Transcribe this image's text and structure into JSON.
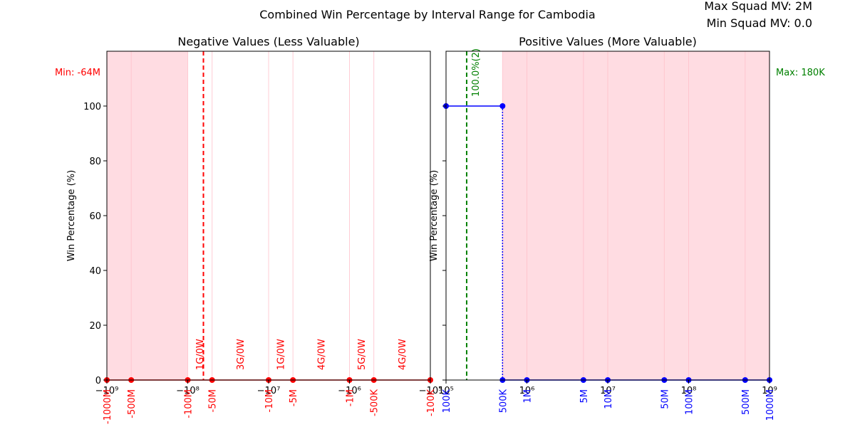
{
  "figure": {
    "title": "Combined Win Percentage by Interval Range for Cambodia",
    "max_squad_mv": "Max Squad MV: 2M",
    "min_squad_mv": "Min Squad MV: 0.0"
  },
  "colors": {
    "negative_series": "#ff0000",
    "positive_series": "#0000ff",
    "shade": "#ffc0cb",
    "max_line": "#008000",
    "min_line": "#ff0000",
    "interval_line": "#ffc0cb"
  },
  "chart_data": [
    {
      "type": "line",
      "title": "Negative Values (Less Valuable)",
      "xlabel": "",
      "ylabel": "Win Percentage (%)",
      "x_scale": "symlog",
      "xlim": [
        -1000000000,
        -100000
      ],
      "ylim": [
        0,
        100
      ],
      "x_major_ticks": [
        {
          "v": -1000000000,
          "label": "−10⁹"
        },
        {
          "v": -100000000,
          "label": "−10⁸"
        },
        {
          "v": -10000000,
          "label": "−10⁷"
        },
        {
          "v": -1000000,
          "label": "−10⁶"
        },
        {
          "v": -100000,
          "label": "−10⁵"
        }
      ],
      "y_ticks": [
        0,
        20,
        40,
        60,
        80,
        100
      ],
      "interval_labels": [
        {
          "v": -1000000000,
          "label": "-1000M"
        },
        {
          "v": -500000000,
          "label": "-500M"
        },
        {
          "v": -100000000,
          "label": "-100M"
        },
        {
          "v": -50000000,
          "label": "-50M"
        },
        {
          "v": -10000000,
          "label": "-10M"
        },
        {
          "v": -5000000,
          "label": "-5M"
        },
        {
          "v": -1000000,
          "label": "-1M"
        },
        {
          "v": -500000,
          "label": "-500K"
        },
        {
          "v": -100000,
          "label": "-100K"
        }
      ],
      "points": [
        {
          "x": -1000000000,
          "y": 0
        },
        {
          "x": -500000000,
          "y": 0
        },
        {
          "x": -100000000,
          "y": 0
        },
        {
          "x": -50000000,
          "y": 0
        },
        {
          "x": -10000000,
          "y": 0
        },
        {
          "x": -5000000,
          "y": 0
        },
        {
          "x": -1000000,
          "y": 0
        },
        {
          "x": -500000,
          "y": 0
        },
        {
          "x": -100000,
          "y": 0
        }
      ],
      "segment_annotations": [
        {
          "x": -70000000,
          "label": "1G/0W"
        },
        {
          "x": -22000000,
          "label": "3G/0W"
        },
        {
          "x": -7000000,
          "label": "1G/0W"
        },
        {
          "x": -2200000,
          "label": "4G/0W"
        },
        {
          "x": -700000,
          "label": "5G/0W"
        },
        {
          "x": -220000,
          "label": "4G/0W"
        }
      ],
      "shaded_ranges": [
        [
          -1000000000,
          -100000000
        ]
      ],
      "reference_line": {
        "x": -64000000,
        "label": "Min: -64M"
      }
    },
    {
      "type": "line",
      "title": "Positive Values (More Valuable)",
      "xlabel": "",
      "ylabel": "Win Percentage (%)",
      "x_scale": "log",
      "xlim": [
        100000,
        1000000000
      ],
      "ylim": [
        0,
        100
      ],
      "x_major_ticks": [
        {
          "v": 100000,
          "label": "10⁵"
        },
        {
          "v": 1000000,
          "label": "10⁶"
        },
        {
          "v": 10000000,
          "label": "10⁷"
        },
        {
          "v": 100000000,
          "label": "10⁸"
        },
        {
          "v": 1000000000,
          "label": "10⁹"
        }
      ],
      "y_ticks": [
        0,
        20,
        40,
        60,
        80,
        100
      ],
      "interval_labels": [
        {
          "v": 100000,
          "label": "100K"
        },
        {
          "v": 500000,
          "label": "500K"
        },
        {
          "v": 1000000,
          "label": "1M"
        },
        {
          "v": 5000000,
          "label": "5M"
        },
        {
          "v": 10000000,
          "label": "10M"
        },
        {
          "v": 50000000,
          "label": "50M"
        },
        {
          "v": 100000000,
          "label": "100M"
        },
        {
          "v": 500000000,
          "label": "500M"
        },
        {
          "v": 1000000000,
          "label": "1000M"
        }
      ],
      "points_high": [
        {
          "x": 100000,
          "y": 100
        },
        {
          "x": 500000,
          "y": 100
        }
      ],
      "points_low": [
        {
          "x": 500000,
          "y": 0
        },
        {
          "x": 1000000,
          "y": 0
        },
        {
          "x": 5000000,
          "y": 0
        },
        {
          "x": 10000000,
          "y": 0
        },
        {
          "x": 50000000,
          "y": 0
        },
        {
          "x": 100000000,
          "y": 0
        },
        {
          "x": 500000000,
          "y": 0
        },
        {
          "x": 1000000000,
          "y": 0
        }
      ],
      "drop_x": 500000,
      "segment_annotations": [
        {
          "x": 180000,
          "label": "100.0%(2)"
        }
      ],
      "shaded_ranges": [
        [
          500000,
          1000000000
        ]
      ],
      "reference_line": {
        "x": 180000,
        "label": "Max: 180K"
      }
    }
  ]
}
